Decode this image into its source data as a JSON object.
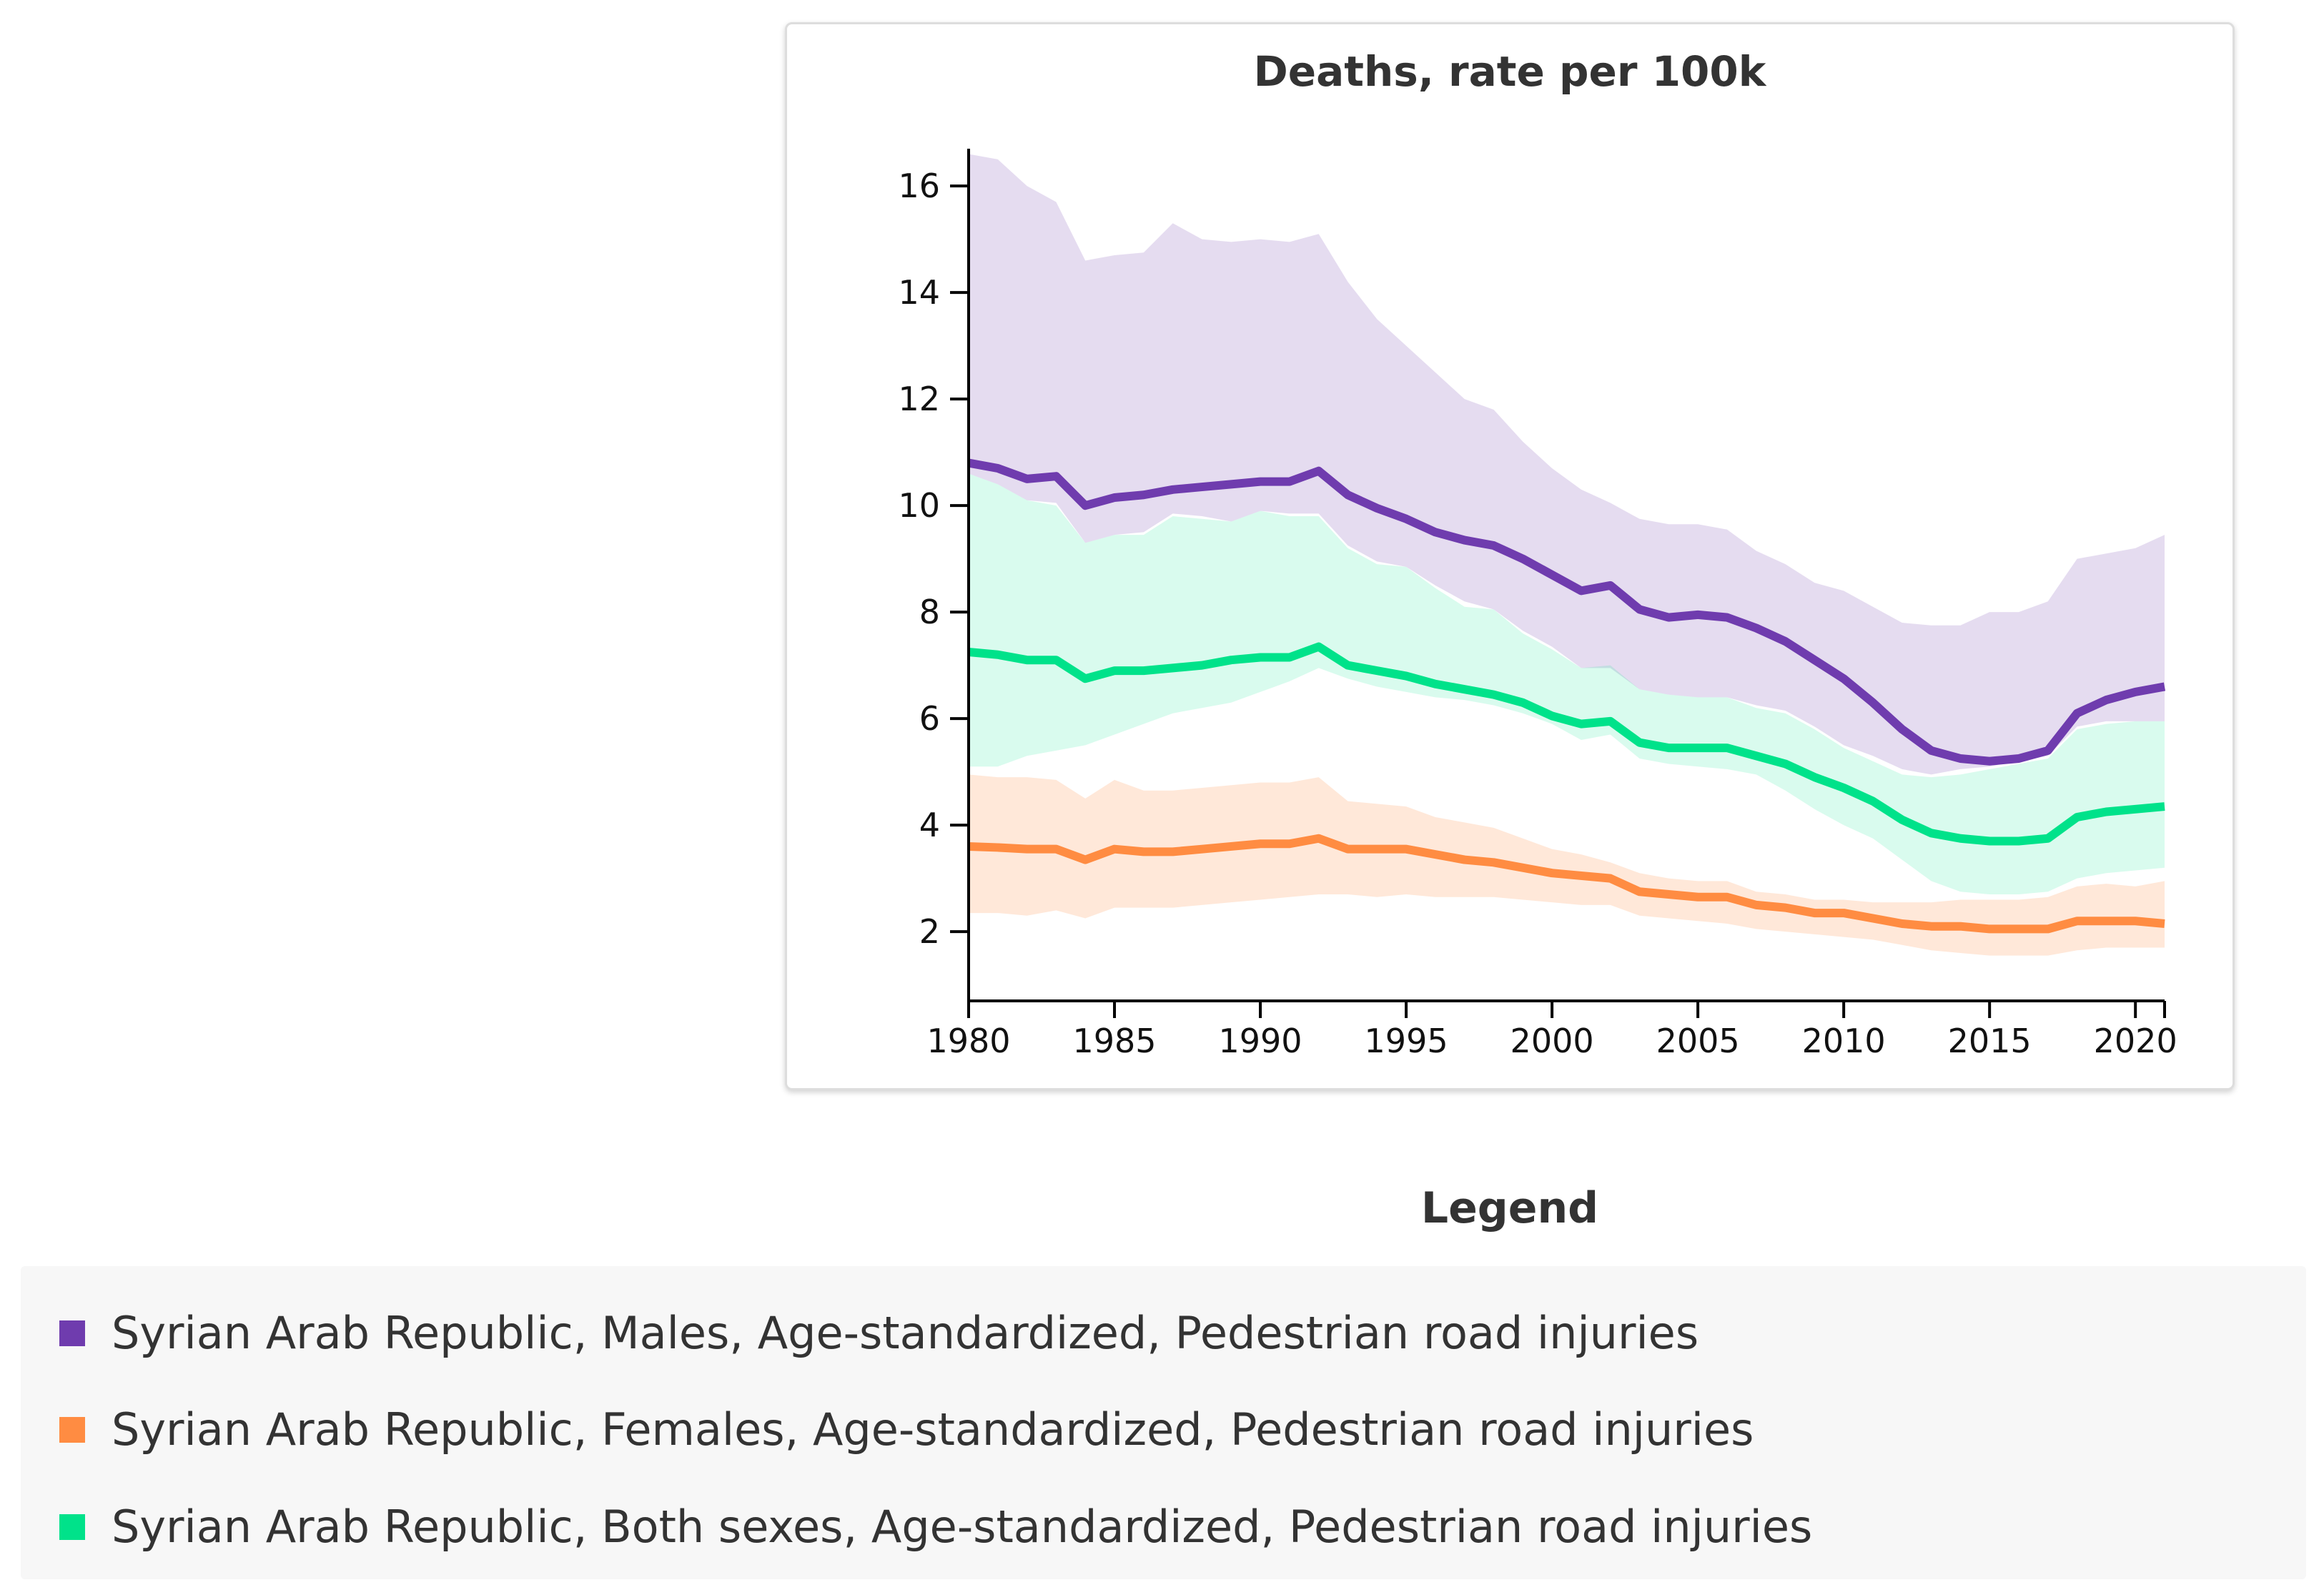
{
  "chart_data": {
    "type": "line",
    "title": "Deaths, rate per 100k",
    "xlabel": "",
    "ylabel": "",
    "xlim": [
      1980,
      2021
    ],
    "ylim": [
      0.7,
      16.7
    ],
    "x_ticks": [
      "1980",
      "1985",
      "1990",
      "1995",
      "2000",
      "2005",
      "2010",
      "2015",
      "2020"
    ],
    "y_ticks": [
      "2",
      "4",
      "6",
      "8",
      "10",
      "12",
      "14",
      "16"
    ],
    "grid": false,
    "legend_position": "bottom",
    "x": [
      1980,
      1981,
      1982,
      1983,
      1984,
      1985,
      1986,
      1987,
      1988,
      1989,
      1990,
      1991,
      1992,
      1993,
      1994,
      1995,
      1996,
      1997,
      1998,
      1999,
      2000,
      2001,
      2002,
      2003,
      2004,
      2005,
      2006,
      2007,
      2008,
      2009,
      2010,
      2011,
      2012,
      2013,
      2014,
      2015,
      2016,
      2017,
      2018,
      2019,
      2020,
      2021
    ],
    "series": [
      {
        "name": "Syrian Arab Republic, Males, Age-standardized, Pedestrian road injuries",
        "color": "#6f3cae",
        "band_color": "#e5dbef",
        "values": [
          10.8,
          10.7,
          10.5,
          10.55,
          10.0,
          10.15,
          10.2,
          10.3,
          10.35,
          10.4,
          10.45,
          10.45,
          10.65,
          10.2,
          9.95,
          9.75,
          9.5,
          9.35,
          9.25,
          9.0,
          8.7,
          8.4,
          8.5,
          8.05,
          7.9,
          7.95,
          7.9,
          7.7,
          7.45,
          7.1,
          6.75,
          6.3,
          5.8,
          5.4,
          5.25,
          5.2,
          5.25,
          5.4,
          6.1,
          6.35,
          6.5,
          6.6
        ],
        "upper": [
          16.6,
          16.5,
          16.0,
          15.7,
          14.6,
          14.7,
          14.75,
          15.3,
          15.0,
          14.95,
          15.0,
          14.95,
          15.1,
          14.2,
          13.5,
          13.0,
          12.5,
          12.0,
          11.8,
          11.2,
          10.7,
          10.3,
          10.05,
          9.75,
          9.65,
          9.65,
          9.55,
          9.15,
          8.9,
          8.55,
          8.4,
          8.1,
          7.8,
          7.75,
          7.75,
          8.0,
          8.0,
          8.2,
          9.0,
          9.1,
          9.2,
          9.45
        ],
        "lower": [
          10.6,
          10.4,
          10.1,
          10.05,
          9.3,
          9.45,
          9.5,
          9.85,
          9.8,
          9.7,
          9.9,
          9.85,
          9.85,
          9.25,
          8.95,
          8.85,
          8.5,
          8.2,
          8.05,
          7.65,
          7.35,
          6.95,
          6.95,
          6.55,
          6.45,
          6.4,
          6.4,
          6.25,
          6.15,
          5.85,
          5.5,
          5.3,
          5.05,
          4.95,
          5.05,
          5.1,
          5.2,
          5.3,
          5.85,
          5.95,
          5.95,
          5.95
        ]
      },
      {
        "name": "Syrian Arab Republic, Females, Age-standardized, Pedestrian road injuries",
        "color": "#ff8c42",
        "band_color": "#fde3d2",
        "values": [
          3.6,
          3.58,
          3.55,
          3.55,
          3.35,
          3.55,
          3.5,
          3.5,
          3.55,
          3.6,
          3.65,
          3.65,
          3.75,
          3.55,
          3.55,
          3.55,
          3.45,
          3.35,
          3.3,
          3.2,
          3.1,
          3.05,
          3.0,
          2.75,
          2.7,
          2.65,
          2.65,
          2.5,
          2.45,
          2.35,
          2.35,
          2.25,
          2.15,
          2.1,
          2.1,
          2.05,
          2.05,
          2.05,
          2.2,
          2.2,
          2.2,
          2.15
        ],
        "upper": [
          4.95,
          4.9,
          4.9,
          4.85,
          4.5,
          4.85,
          4.65,
          4.65,
          4.7,
          4.75,
          4.8,
          4.8,
          4.9,
          4.45,
          4.4,
          4.35,
          4.15,
          4.05,
          3.95,
          3.75,
          3.55,
          3.45,
          3.3,
          3.1,
          3.0,
          2.95,
          2.95,
          2.75,
          2.7,
          2.6,
          2.6,
          2.55,
          2.55,
          2.55,
          2.6,
          2.6,
          2.6,
          2.65,
          2.85,
          2.9,
          2.85,
          2.95
        ],
        "lower": [
          2.35,
          2.35,
          2.3,
          2.4,
          2.25,
          2.45,
          2.45,
          2.45,
          2.5,
          2.55,
          2.6,
          2.65,
          2.7,
          2.7,
          2.65,
          2.7,
          2.65,
          2.65,
          2.65,
          2.6,
          2.55,
          2.5,
          2.5,
          2.3,
          2.25,
          2.2,
          2.15,
          2.05,
          2.0,
          1.95,
          1.9,
          1.85,
          1.75,
          1.65,
          1.6,
          1.55,
          1.55,
          1.55,
          1.65,
          1.7,
          1.7,
          1.7
        ]
      },
      {
        "name": "Syrian Arab Republic, Both sexes, Age-standardized, Pedestrian road injuries",
        "color": "#00e28a",
        "band_color": "#d8f8e8",
        "values": [
          7.25,
          7.2,
          7.1,
          7.1,
          6.75,
          6.9,
          6.9,
          6.95,
          7.0,
          7.1,
          7.15,
          7.15,
          7.35,
          7.0,
          6.9,
          6.8,
          6.65,
          6.55,
          6.45,
          6.3,
          6.05,
          5.9,
          5.95,
          5.55,
          5.45,
          5.45,
          5.45,
          5.3,
          5.15,
          4.9,
          4.7,
          4.45,
          4.1,
          3.85,
          3.75,
          3.7,
          3.7,
          3.75,
          4.15,
          4.25,
          4.3,
          4.35
        ],
        "upper": [
          10.6,
          10.4,
          10.1,
          10.0,
          9.3,
          9.45,
          9.45,
          9.8,
          9.75,
          9.7,
          9.9,
          9.8,
          9.8,
          9.2,
          8.9,
          8.85,
          8.45,
          8.1,
          8.05,
          7.6,
          7.3,
          6.95,
          7.0,
          6.55,
          6.45,
          6.4,
          6.4,
          6.2,
          6.1,
          5.8,
          5.45,
          5.2,
          4.95,
          4.9,
          4.95,
          5.05,
          5.15,
          5.25,
          5.8,
          5.9,
          5.95,
          5.95
        ],
        "lower": [
          5.1,
          5.1,
          5.3,
          5.4,
          5.5,
          5.7,
          5.9,
          6.1,
          6.2,
          6.3,
          6.5,
          6.7,
          6.95,
          6.75,
          6.6,
          6.5,
          6.4,
          6.35,
          6.25,
          6.1,
          5.9,
          5.6,
          5.7,
          5.25,
          5.15,
          5.1,
          5.05,
          4.95,
          4.65,
          4.3,
          4.0,
          3.75,
          3.35,
          2.95,
          2.75,
          2.7,
          2.7,
          2.75,
          3.0,
          3.1,
          3.15,
          3.2
        ]
      }
    ]
  },
  "legend": {
    "title": "Legend",
    "items": [
      {
        "label": "Syrian Arab Republic, Males, Age-standardized, Pedestrian road injuries",
        "color": "#6f3cae"
      },
      {
        "label": "Syrian Arab Republic, Females, Age-standardized, Pedestrian road injuries",
        "color": "#ff8c42"
      },
      {
        "label": "Syrian Arab Republic, Both sexes, Age-standardized, Pedestrian road injuries",
        "color": "#00e28a"
      }
    ]
  }
}
